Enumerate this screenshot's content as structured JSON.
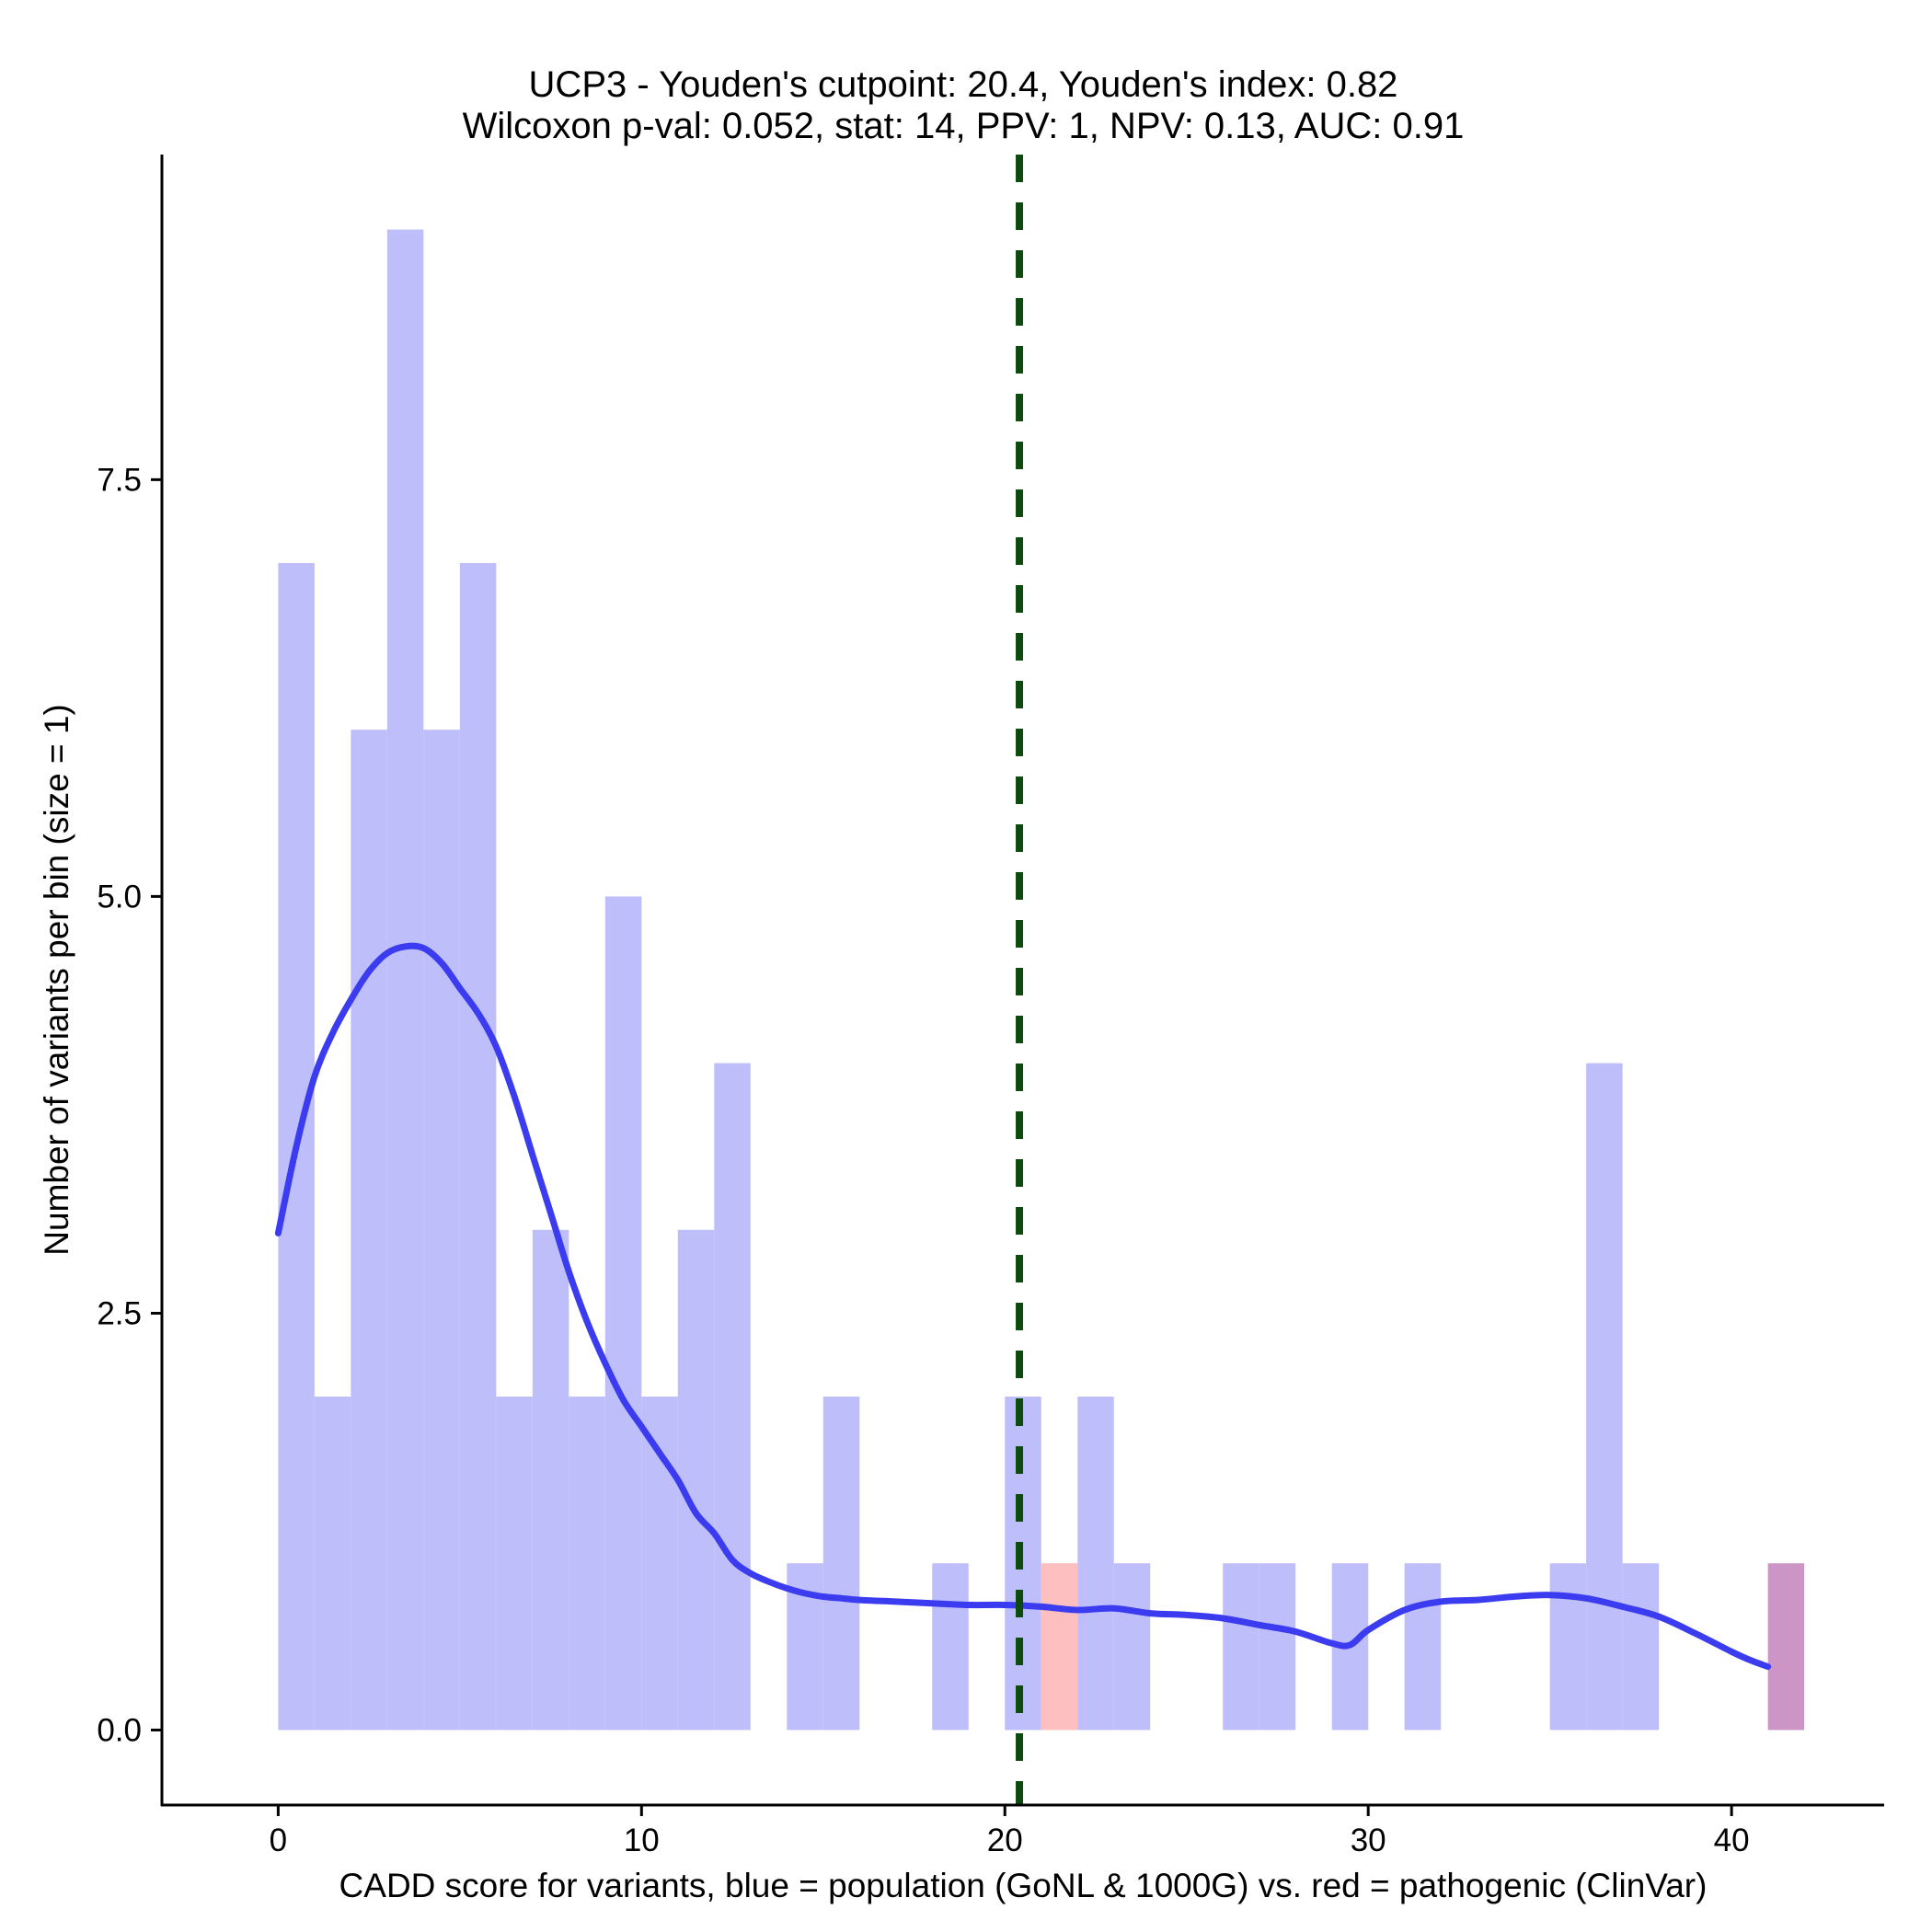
{
  "chart_data": {
    "type": "bar",
    "title_lines": [
      "UCP3 - Youden's cutpoint: 20.4, Youden's index: 0.82",
      "Wilcoxon p-val: 0.052, stat: 14, PPV: 1, NPV: 0.13, AUC: 0.91"
    ],
    "xlabel": "CADD score for variants, blue = population (GoNL & 1000G) vs. red = pathogenic (ClinVar)",
    "ylabel": "Number of variants per bin (size = 1)",
    "xlim": [
      -3.2,
      44.2
    ],
    "ylim": [
      -0.45,
      9.45
    ],
    "x_ticks": [
      0,
      10,
      20,
      30,
      40
    ],
    "x_tick_labels": [
      "0",
      "10",
      "20",
      "30",
      "40"
    ],
    "y_ticks": [
      0,
      2.5,
      5,
      7.5
    ],
    "y_tick_labels": [
      "0.0",
      "2.5",
      "5.0",
      "7.5"
    ],
    "bin_width": 1,
    "series": [
      {
        "name": "population (GoNL & 1000G)",
        "color": "#bebefb",
        "bins": [
          {
            "x0": 0,
            "count": 7
          },
          {
            "x0": 1,
            "count": 2
          },
          {
            "x0": 2,
            "count": 6
          },
          {
            "x0": 3,
            "count": 9
          },
          {
            "x0": 4,
            "count": 6
          },
          {
            "x0": 5,
            "count": 7
          },
          {
            "x0": 6,
            "count": 2
          },
          {
            "x0": 7,
            "count": 3
          },
          {
            "x0": 8,
            "count": 2
          },
          {
            "x0": 9,
            "count": 5
          },
          {
            "x0": 10,
            "count": 2
          },
          {
            "x0": 11,
            "count": 3
          },
          {
            "x0": 12,
            "count": 4
          },
          {
            "x0": 14,
            "count": 1
          },
          {
            "x0": 15,
            "count": 2
          },
          {
            "x0": 18,
            "count": 1
          },
          {
            "x0": 20,
            "count": 2
          },
          {
            "x0": 22,
            "count": 2
          },
          {
            "x0": 23,
            "count": 1
          },
          {
            "x0": 26,
            "count": 1
          },
          {
            "x0": 27,
            "count": 1
          },
          {
            "x0": 29,
            "count": 1
          },
          {
            "x0": 31,
            "count": 1
          },
          {
            "x0": 35,
            "count": 1
          },
          {
            "x0": 36,
            "count": 4
          },
          {
            "x0": 37,
            "count": 1
          },
          {
            "x0": 41,
            "count": 1
          }
        ]
      },
      {
        "name": "pathogenic (ClinVar)",
        "color": "#fdbfbf",
        "bins": [
          {
            "x0": 21,
            "count": 1
          },
          {
            "x0": 41,
            "count": 1
          }
        ]
      }
    ],
    "overlap_color": "#cd95c6",
    "density_curve": {
      "name": "population density (scaled)",
      "color": "#3b3bf0",
      "x": [
        0,
        0.5,
        1,
        1.5,
        2,
        2.5,
        3,
        3.5,
        4,
        4.5,
        5,
        5.5,
        6,
        6.5,
        7,
        7.5,
        8,
        8.5,
        9,
        9.5,
        10,
        10.5,
        11,
        11.5,
        12,
        12.5,
        13,
        13.5,
        14,
        14.5,
        15,
        15.5,
        16,
        17,
        18,
        19,
        20,
        21,
        22,
        23,
        24,
        25,
        26,
        27,
        28,
        29,
        29.5,
        30,
        31,
        32,
        33,
        34,
        35,
        36,
        37,
        38,
        39,
        40,
        40.5,
        41
      ],
      "y": [
        2.98,
        3.5,
        3.92,
        4.18,
        4.38,
        4.55,
        4.66,
        4.7,
        4.69,
        4.6,
        4.45,
        4.3,
        4.1,
        3.8,
        3.45,
        3.1,
        2.75,
        2.45,
        2.2,
        1.98,
        1.82,
        1.66,
        1.5,
        1.3,
        1.18,
        1.02,
        0.94,
        0.89,
        0.85,
        0.82,
        0.8,
        0.79,
        0.78,
        0.77,
        0.76,
        0.75,
        0.75,
        0.74,
        0.72,
        0.73,
        0.7,
        0.69,
        0.67,
        0.63,
        0.59,
        0.52,
        0.51,
        0.6,
        0.72,
        0.77,
        0.78,
        0.8,
        0.81,
        0.79,
        0.74,
        0.68,
        0.58,
        0.47,
        0.42,
        0.38
      ]
    },
    "cutpoint": {
      "label": "Youden's cutpoint",
      "value": 20.4,
      "color": "#0d4a0d",
      "style": "dashed"
    },
    "grid": false
  }
}
